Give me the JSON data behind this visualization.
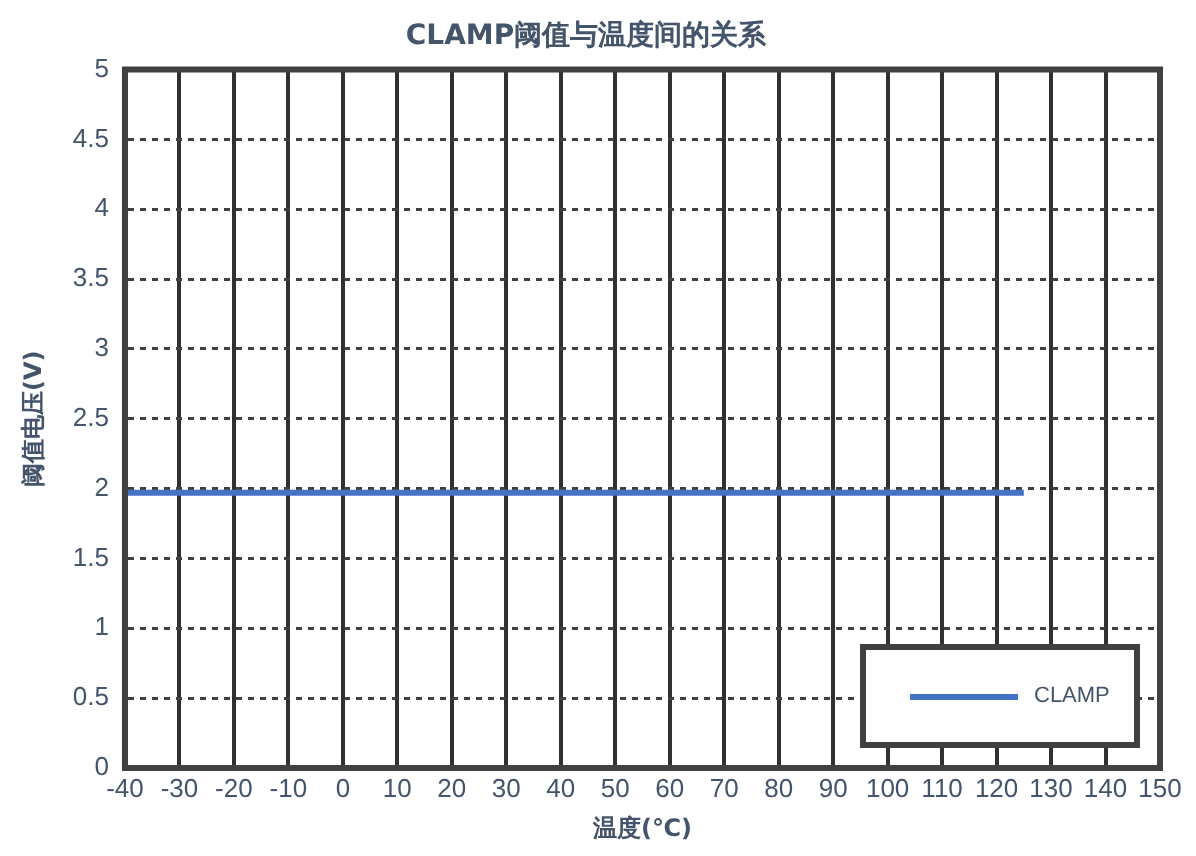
{
  "chart_data": {
    "type": "line",
    "title": "CLAMP阈值与温度间的关系",
    "xlabel": "温度(℃)",
    "ylabel": "阈值电压(V)",
    "x": [
      -40,
      125
    ],
    "series": [
      {
        "name": "CLAMP",
        "color": "#4472c4",
        "values": [
          1.97,
          1.97
        ]
      }
    ],
    "xlim": [
      -40,
      150
    ],
    "xticks": [
      -40,
      -30,
      -20,
      -10,
      0,
      10,
      20,
      30,
      40,
      50,
      60,
      70,
      80,
      90,
      100,
      110,
      120,
      130,
      140,
      150
    ],
    "ylim": [
      0,
      5
    ],
    "yticks": [
      0,
      0.5,
      1,
      1.5,
      2,
      2.5,
      3,
      3.5,
      4,
      4.5,
      5
    ],
    "grid": true,
    "legend": "bottom right",
    "marker": "none",
    "line_style": "solid"
  }
}
